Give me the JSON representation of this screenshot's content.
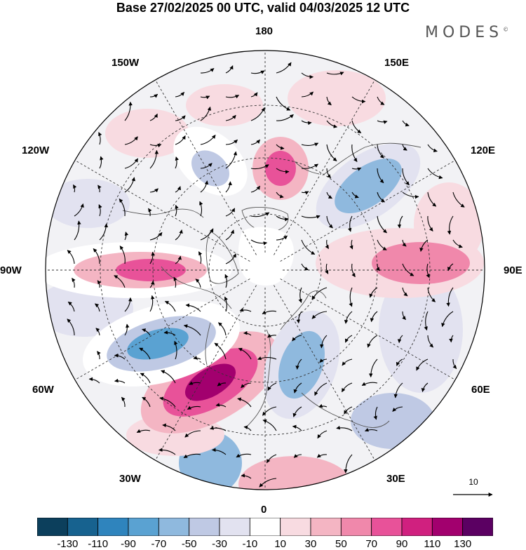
{
  "title": "Base 27/02/2025 00 UTC, valid 04/03/2025 12 UTC",
  "brand": "MODES",
  "brand_mark": "©",
  "longitude_labels": {
    "n180": "180",
    "w150": "150W",
    "e150": "150E",
    "w120": "120W",
    "e120": "120E",
    "w90": "90W",
    "e90": "90E",
    "w60": "60W",
    "e60": "60E",
    "w30": "30W",
    "e30": "30E",
    "s0": "0"
  },
  "reference_vector": {
    "label": "10"
  },
  "colorbar": {
    "colors": [
      "#0c3f5c",
      "#17628f",
      "#2f84bd",
      "#5aa2d2",
      "#8fb9de",
      "#bfc9e4",
      "#e2e2f0",
      "#ffffff",
      "#f8dbe1",
      "#f4b5c3",
      "#f088ab",
      "#e85299",
      "#d0207f",
      "#a2006e",
      "#5b0062"
    ],
    "labels": [
      "-130",
      "-110",
      "-90",
      "-70",
      "-50",
      "-30",
      "-10",
      "10",
      "30",
      "50",
      "70",
      "90",
      "110",
      "130"
    ]
  },
  "anomaly_centers": [
    {
      "name": "north-atlantic-positive",
      "value": 110
    },
    {
      "name": "north-america-negative",
      "value": -90
    },
    {
      "name": "hudson-positive",
      "value": 70
    },
    {
      "name": "scandinavia-negative",
      "value": -70
    },
    {
      "name": "east-siberia-negative",
      "value": -70
    },
    {
      "name": "bering-positive",
      "value": 70
    },
    {
      "name": "central-asia-positive",
      "value": 50
    },
    {
      "name": "alaska-negative",
      "value": -50
    },
    {
      "name": "gulf-of-alaska-negative",
      "value": -30
    }
  ]
}
